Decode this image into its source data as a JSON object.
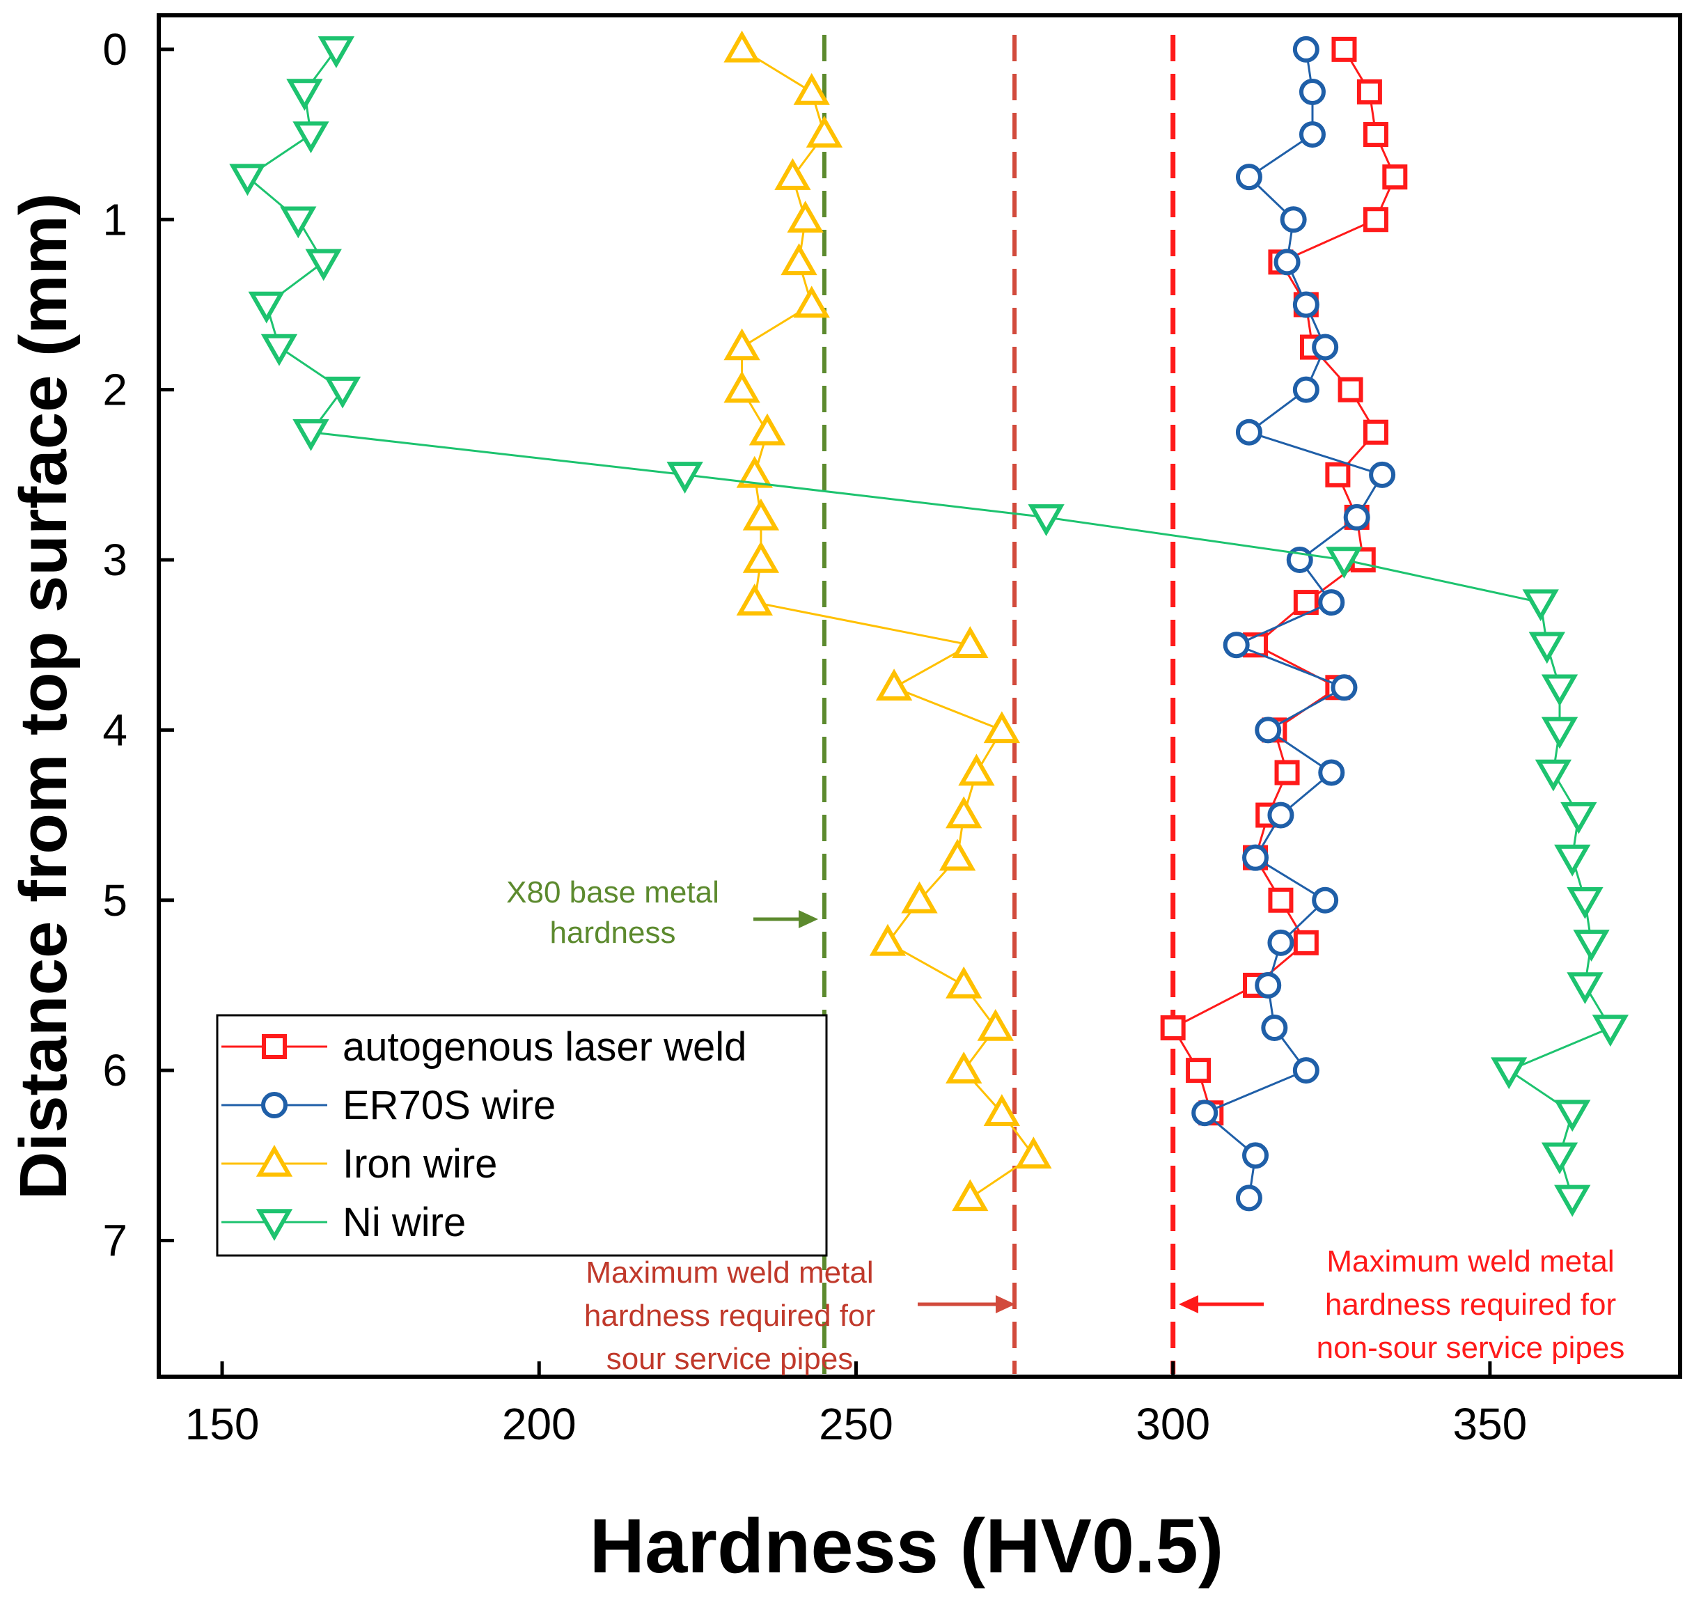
{
  "chart_data": {
    "type": "scatter",
    "title": "",
    "xlabel": "Hardness (HV0.5)",
    "ylabel": "Distance from top surface (mm)",
    "xlim": [
      140,
      380
    ],
    "ylim": [
      7.8,
      -0.2
    ],
    "y_inverted": true,
    "grid": false,
    "legend_position": "lower-left",
    "xticks": [
      150,
      200,
      250,
      300,
      350
    ],
    "yticks": [
      0,
      1,
      2,
      3,
      4,
      5,
      6,
      7
    ],
    "xtick_labels": [
      "150",
      "200",
      "250",
      "300",
      "350"
    ],
    "ytick_labels": [
      "0",
      "1",
      "2",
      "3",
      "4",
      "5",
      "6",
      "7"
    ],
    "series": [
      {
        "name": "autogenous laser weld",
        "color": "#ff1a1a",
        "marker": "square",
        "points": [
          [
            327,
            0
          ],
          [
            331,
            0.25
          ],
          [
            332,
            0.5
          ],
          [
            335,
            0.75
          ],
          [
            332,
            1
          ],
          [
            317,
            1.25
          ],
          [
            321,
            1.5
          ],
          [
            322,
            1.75
          ],
          [
            328,
            2
          ],
          [
            332,
            2.25
          ],
          [
            326,
            2.5
          ],
          [
            329,
            2.75
          ],
          [
            330,
            3
          ],
          [
            321,
            3.25
          ],
          [
            313,
            3.5
          ],
          [
            326,
            3.75
          ],
          [
            316,
            4
          ],
          [
            318,
            4.25
          ],
          [
            315,
            4.5
          ],
          [
            313,
            4.75
          ],
          [
            317,
            5
          ],
          [
            321,
            5.25
          ],
          [
            313,
            5.5
          ],
          [
            300,
            5.75
          ],
          [
            304,
            6
          ],
          [
            306,
            6.25
          ]
        ]
      },
      {
        "name": "ER70S wire",
        "color": "#1f5fa8",
        "marker": "circle",
        "points": [
          [
            321,
            0
          ],
          [
            322,
            0.25
          ],
          [
            322,
            0.5
          ],
          [
            312,
            0.75
          ],
          [
            319,
            1
          ],
          [
            318,
            1.25
          ],
          [
            321,
            1.5
          ],
          [
            324,
            1.75
          ],
          [
            321,
            2
          ],
          [
            312,
            2.25
          ],
          [
            333,
            2.5
          ],
          [
            329,
            2.75
          ],
          [
            320,
            3
          ],
          [
            325,
            3.25
          ],
          [
            310,
            3.5
          ],
          [
            327,
            3.75
          ],
          [
            315,
            4
          ],
          [
            325,
            4.25
          ],
          [
            317,
            4.5
          ],
          [
            313,
            4.75
          ],
          [
            324,
            5
          ],
          [
            317,
            5.25
          ],
          [
            315,
            5.5
          ],
          [
            316,
            5.75
          ],
          [
            321,
            6
          ],
          [
            305,
            6.25
          ],
          [
            313,
            6.5
          ],
          [
            312,
            6.75
          ]
        ]
      },
      {
        "name": "Iron wire",
        "color": "#ffc000",
        "marker": "triangle-up",
        "points": [
          [
            232,
            0
          ],
          [
            243,
            0.25
          ],
          [
            245,
            0.5
          ],
          [
            240,
            0.75
          ],
          [
            242,
            1
          ],
          [
            241,
            1.25
          ],
          [
            243,
            1.5
          ],
          [
            232,
            1.75
          ],
          [
            232,
            2
          ],
          [
            236,
            2.25
          ],
          [
            234,
            2.5
          ],
          [
            235,
            2.75
          ],
          [
            235,
            3
          ],
          [
            234,
            3.25
          ],
          [
            268,
            3.5
          ],
          [
            256,
            3.75
          ],
          [
            273,
            4
          ],
          [
            269,
            4.25
          ],
          [
            267,
            4.5
          ],
          [
            266,
            4.75
          ],
          [
            260,
            5
          ],
          [
            255,
            5.25
          ],
          [
            267,
            5.5
          ],
          [
            272,
            5.75
          ],
          [
            267,
            6
          ],
          [
            273,
            6.25
          ],
          [
            278,
            6.5
          ],
          [
            268,
            6.75
          ]
        ]
      },
      {
        "name": "Ni wire",
        "color": "#1dc36f",
        "marker": "triangle-down",
        "points": [
          [
            168,
            0
          ],
          [
            163,
            0.25
          ],
          [
            164,
            0.5
          ],
          [
            154,
            0.75
          ],
          [
            162,
            1
          ],
          [
            166,
            1.25
          ],
          [
            157,
            1.5
          ],
          [
            159,
            1.75
          ],
          [
            169,
            2
          ],
          [
            164,
            2.25
          ],
          [
            223,
            2.5
          ],
          [
            280,
            2.75
          ],
          [
            327,
            3
          ],
          [
            358,
            3.25
          ],
          [
            359,
            3.5
          ],
          [
            361,
            3.75
          ],
          [
            361,
            4
          ],
          [
            360,
            4.25
          ],
          [
            364,
            4.5
          ],
          [
            363,
            4.75
          ],
          [
            365,
            5
          ],
          [
            366,
            5.25
          ],
          [
            365,
            5.5
          ],
          [
            369,
            5.75
          ],
          [
            353,
            6
          ],
          [
            363,
            6.25
          ],
          [
            361,
            6.5
          ],
          [
            363,
            6.75
          ]
        ]
      }
    ],
    "reference_lines": [
      {
        "x": 245,
        "color": "#5c8a2e",
        "label": "X80 base metal hardness"
      },
      {
        "x": 275,
        "color": "#d24a3c",
        "label": "Maximum weld metal hardness required for sour service pipes"
      },
      {
        "x": 300,
        "color": "#ff1a1a",
        "label": "Maximum weld metal hardness required for non-sour service pipes"
      }
    ],
    "annotations": {
      "x80": {
        "line1": "X80 base metal",
        "line2": "hardness",
        "color": "#5c8a2e"
      },
      "sour": {
        "line1": "Maximum weld metal",
        "line2": "hardness required for",
        "line3": "sour service pipes",
        "color": "#c0392b"
      },
      "nonsour": {
        "line1": "Maximum weld metal",
        "line2": "hardness required for",
        "line3": "non-sour service pipes",
        "color": "#ff1a1a"
      }
    }
  }
}
